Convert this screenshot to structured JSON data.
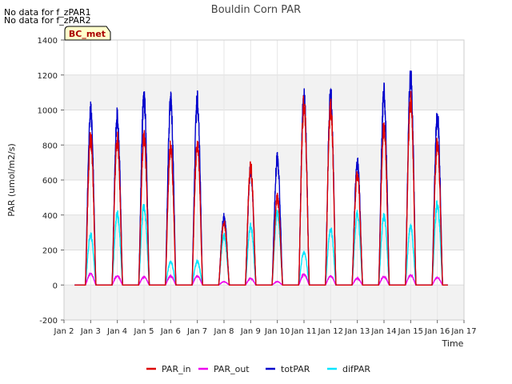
{
  "notes": [
    "No data for f_zPAR1",
    "No data for f_zPAR2"
  ],
  "chart_data": {
    "type": "line",
    "title": "Bouldin Corn PAR",
    "xlabel": "Time",
    "ylabel": "PAR (umol/m2/s)",
    "xlim": [
      2,
      17
    ],
    "ylim": [
      -200,
      1400
    ],
    "yticks": [
      -200,
      0,
      200,
      400,
      600,
      800,
      1000,
      1200,
      1400
    ],
    "xticks": [
      2,
      3,
      4,
      5,
      6,
      7,
      8,
      9,
      10,
      11,
      12,
      13,
      14,
      15,
      16,
      17
    ],
    "xtick_labels": [
      "Jan 2",
      "Jan 3",
      "Jan 4",
      "Jan 5",
      "Jan 6",
      "Jan 7",
      "Jan 8",
      "Jan 9",
      "Jan 10",
      "Jan 11",
      "Jan 12",
      "Jan 13",
      "Jan 14",
      "Jan 15",
      "Jan 16",
      "Jan 17"
    ],
    "grid": true,
    "annotation": "BC_met",
    "legend_position": "bottom-center",
    "series": [
      {
        "name": "PAR_in",
        "color": "#dd0000",
        "daily_peak": [
          890,
          880,
          900,
          840,
          860,
          380,
          720,
          530,
          1100,
          1080,
          670,
          960,
          1130,
          860
        ]
      },
      {
        "name": "PAR_out",
        "color": "#ee00ee",
        "daily_peak": [
          70,
          55,
          50,
          55,
          55,
          20,
          40,
          20,
          65,
          55,
          40,
          50,
          60,
          45
        ]
      },
      {
        "name": "totPAR",
        "color": "#0000cc",
        "daily_peak": [
          1050,
          1030,
          1140,
          1110,
          1115,
          415,
          700,
          760,
          1150,
          1150,
          740,
          1165,
          1265,
          1020
        ]
      },
      {
        "name": "difPAR",
        "color": "#00e5ff",
        "daily_peak": [
          305,
          435,
          480,
          140,
          140,
          300,
          360,
          435,
          200,
          340,
          430,
          420,
          350,
          490
        ]
      }
    ]
  }
}
